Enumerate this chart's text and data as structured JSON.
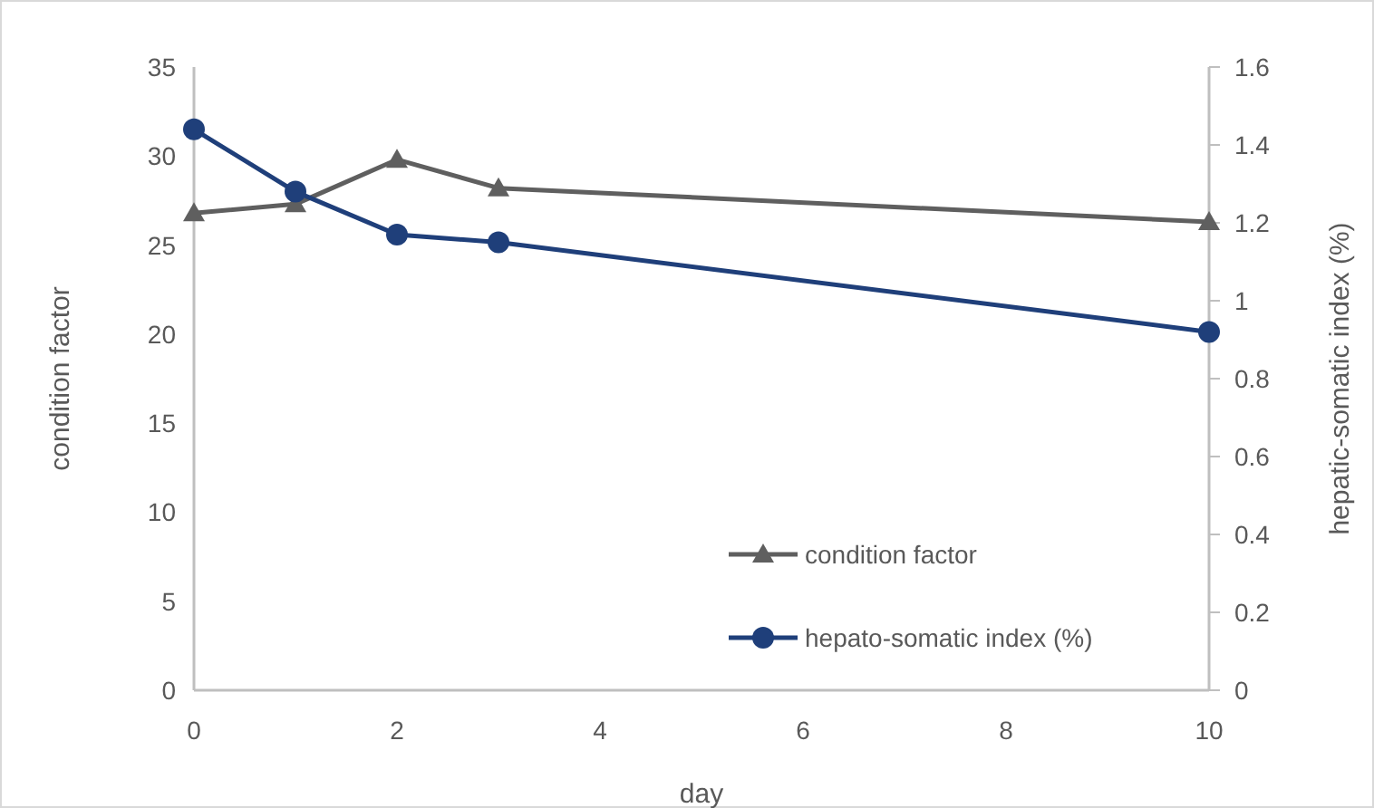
{
  "chart_data": {
    "type": "line",
    "xlabel": "day",
    "ylabel": "condition factor",
    "y2label": "hepatic-somatic index (%)",
    "x": [
      0,
      1,
      2,
      3,
      10
    ],
    "series": [
      {
        "name": "condition factor",
        "color": "#5f5f5f",
        "marker": "triangle",
        "values": [
          26.8,
          27.3,
          29.8,
          28.2,
          26.3
        ]
      },
      {
        "name": "hepato-somatic index (%)",
        "color": "#1f3f7a",
        "marker": "circle",
        "axis": "y2",
        "values": [
          1.44,
          1.28,
          1.17,
          1.15,
          0.92
        ]
      }
    ],
    "xlim": [
      0,
      10
    ],
    "xticks": [
      0,
      2,
      4,
      6,
      8,
      10
    ],
    "ylim": [
      0,
      35
    ],
    "yticks": [
      0,
      5,
      10,
      15,
      20,
      25,
      30,
      35
    ],
    "y2lim": [
      0,
      1.6
    ],
    "y2ticks": [
      0,
      0.2,
      0.4,
      0.6,
      0.8,
      1,
      1.2,
      1.4,
      1.6
    ],
    "grid": false,
    "legend": "bottom right",
    "line_style": "solid"
  }
}
